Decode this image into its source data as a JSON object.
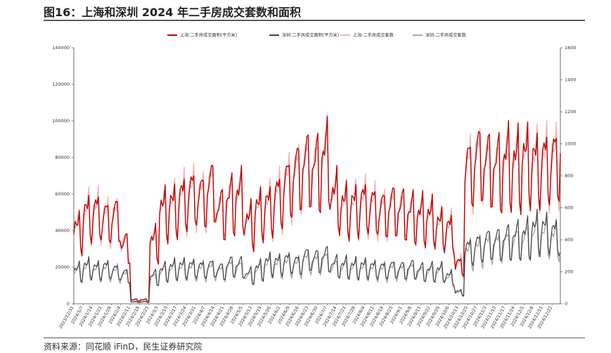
{
  "header": {
    "title": "图16：上海和深圳 2024 年二手房成交套数和面积"
  },
  "footer": {
    "source": "资料来源：同花顺 iFinD，民生证券研究院"
  },
  "chart_data": {
    "type": "line",
    "legend_position": "top",
    "grid": false,
    "x_ticks": [
      "2023/12/31",
      "2024/1/7",
      "2024/1/14",
      "2024/1/21",
      "2024/1/28",
      "2024/2/4",
      "2024/2/11",
      "2024/2/18",
      "2024/2/25",
      "2024/3/3",
      "2024/3/10",
      "2024/3/17",
      "2024/3/24",
      "2024/3/31",
      "2024/4/7",
      "2024/4/14",
      "2024/4/21",
      "2024/4/28",
      "2024/5/5",
      "2024/5/12",
      "2024/5/19",
      "2024/5/26",
      "2024/6/2",
      "2024/6/9",
      "2024/6/16",
      "2024/6/23",
      "2024/6/30",
      "2024/7/7",
      "2024/7/14",
      "2024/7/21",
      "2024/7/28",
      "2024/8/4",
      "2024/8/11",
      "2024/8/18",
      "2024/8/25",
      "2024/9/1",
      "2024/9/8",
      "2024/9/15",
      "2024/9/22",
      "2024/9/29",
      "2024/10/6",
      "2024/10/13",
      "2024/10/20",
      "2024/10/27",
      "2024/11/3",
      "2024/11/10",
      "2024/11/17",
      "2024/11/24",
      "2024/12/1",
      "2024/12/8",
      "2024/12/15",
      "2024/12/22"
    ],
    "y_left": {
      "ticks": [
        "0",
        "20000",
        "40000",
        "60000",
        "80000",
        "100000",
        "120000",
        "140000"
      ],
      "ylim": [
        0,
        140000
      ]
    },
    "y_right": {
      "ticks": [
        "0",
        "200",
        "400",
        "600",
        "800",
        "1000",
        "1200",
        "1400",
        "1600"
      ],
      "ylim": [
        0,
        1600
      ]
    },
    "series": [
      {
        "name": "上海:二手房成交面积(平方米)",
        "axis": "left",
        "color": "#c00000",
        "width": 1.4,
        "weekly_levels": [
          38000,
          46000,
          47000,
          44000,
          45000,
          30000,
          2000,
          2000,
          32000,
          48000,
          50000,
          54000,
          57000,
          55000,
          60000,
          48000,
          53000,
          55000,
          42000,
          48000,
          50000,
          55000,
          62000,
          68000,
          72000,
          70000,
          75000,
          55000,
          50000,
          50000,
          52000,
          50000,
          48000,
          50000,
          48000,
          46000,
          45000,
          44000,
          40000,
          38000,
          20000,
          70000,
          75000,
          72000,
          70000,
          73000,
          72000,
          74000,
          72000,
          73000,
          74000,
          85000
        ]
      },
      {
        "name": "深圳:二手房成交面积(平方米)",
        "axis": "left",
        "color": "#444444",
        "width": 1.2,
        "weekly_levels": [
          17000,
          19000,
          18000,
          18500,
          17000,
          15000,
          1000,
          1000,
          14000,
          17000,
          18500,
          19000,
          19000,
          18500,
          19000,
          17500,
          20000,
          19500,
          15000,
          18000,
          21000,
          21000,
          22000,
          21000,
          24000,
          23000,
          24000,
          20000,
          19500,
          19000,
          19000,
          18500,
          18000,
          18500,
          18000,
          18500,
          17000,
          17000,
          17000,
          14000,
          6000,
          28000,
          30000,
          32000,
          32000,
          33000,
          34000,
          35000,
          38000,
          38000,
          36000,
          30000
        ]
      },
      {
        "name": "上海:二手房成交套数",
        "axis": "right",
        "color": "#f0b4b4",
        "width": 1.4,
        "weekly_levels": [
          440,
          530,
          540,
          500,
          510,
          350,
          20,
          20,
          370,
          550,
          575,
          620,
          650,
          630,
          690,
          550,
          610,
          630,
          480,
          550,
          570,
          630,
          710,
          780,
          820,
          800,
          860,
          630,
          570,
          570,
          590,
          570,
          550,
          570,
          550,
          525,
          515,
          500,
          455,
          435,
          230,
          800,
          860,
          820,
          800,
          835,
          820,
          845,
          820,
          835,
          845,
          970
        ]
      },
      {
        "name": "深圳:二手房成交套数",
        "axis": "right",
        "color": "#a8a8a8",
        "width": 1.4,
        "weekly_levels": [
          185,
          205,
          195,
          200,
          185,
          165,
          10,
          10,
          150,
          185,
          200,
          205,
          205,
          200,
          205,
          190,
          215,
          210,
          160,
          195,
          225,
          225,
          235,
          225,
          255,
          245,
          255,
          215,
          210,
          205,
          205,
          200,
          195,
          200,
          195,
          200,
          185,
          185,
          185,
          150,
          65,
          300,
          320,
          345,
          345,
          355,
          365,
          375,
          405,
          405,
          385,
          320
        ]
      }
    ],
    "day_of_week_pattern": [
      1.0,
      1.12,
      1.15,
      1.2,
      1.3,
      0.78,
      0.72
    ]
  }
}
